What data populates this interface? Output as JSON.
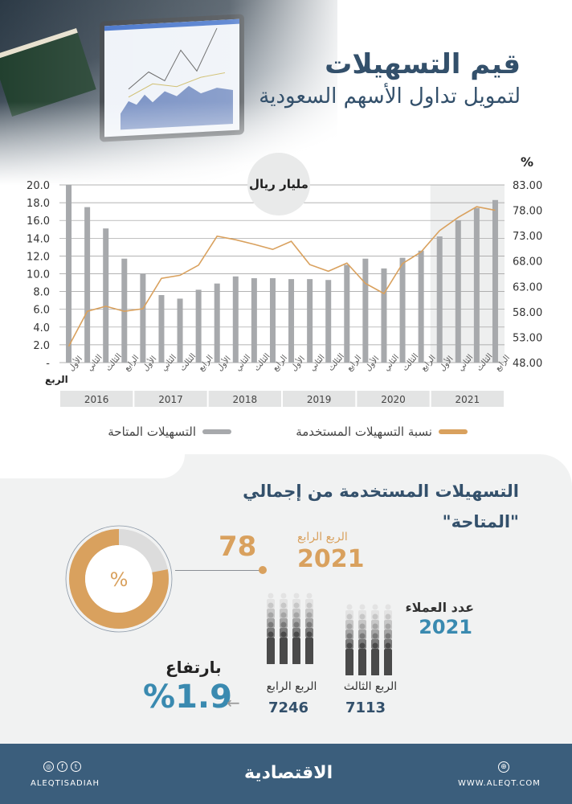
{
  "header": {
    "title_line1": "قيم التسهيلات",
    "title_line2": "لتمويل تداول الأسهم السعودية"
  },
  "chart": {
    "unit_label": "مليار ريال",
    "right_axis_label": "%",
    "quarter_axis_label": "الربع",
    "legend": [
      {
        "label": "نسبة التسهيلات المستخدمة",
        "color": "#d9a15e"
      },
      {
        "label": "التسهيلات المتاحة",
        "color": "#a7a9ac"
      }
    ],
    "years": [
      "2016",
      "2017",
      "2018",
      "2019",
      "2020",
      "2021"
    ]
  },
  "chart_data": {
    "type": "bar",
    "title": "قيم التسهيلات لتمويل تداول الأسهم السعودية",
    "xlabel": "الربع",
    "ylabel": "مليار ريال",
    "y2label": "%",
    "ylim": [
      0,
      20
    ],
    "y2lim": [
      48,
      83
    ],
    "y_ticks": [
      "-",
      "2.0",
      "4.0",
      "6.0",
      "8.0",
      "10.0",
      "12.0",
      "14.0",
      "16.0",
      "18.0",
      "20.0"
    ],
    "y2_ticks": [
      "48.00",
      "53.00",
      "58.00",
      "63.00",
      "68.00",
      "73.00",
      "78.00",
      "83.00"
    ],
    "grid": true,
    "legend_position": "bottom",
    "highlight_year": "2021",
    "categories": [
      "الأول 2016",
      "الثاني 2016",
      "الثالث 2016",
      "الرابع 2016",
      "الأول 2017",
      "الثاني 2017",
      "الثالث 2017",
      "الرابع 2017",
      "الأول 2018",
      "الثاني 2018",
      "الثالث 2018",
      "الرابع 2018",
      "الأول 2019",
      "الثاني 2019",
      "الثالث 2019",
      "الرابع 2019",
      "الأول 2020",
      "الثاني 2020",
      "الثالث 2020",
      "الرابع 2020",
      "الأول 2021",
      "الثاني 2021",
      "الثالث 2021",
      "الرابع 2021"
    ],
    "quarter_labels": [
      "الأول",
      "الثاني",
      "الثالث",
      "الرابع",
      "الأول",
      "الثاني",
      "الثالث",
      "الرابع",
      "الأول",
      "الثاني",
      "الثالث",
      "الرابع",
      "الأول",
      "الثاني",
      "الثالث",
      "الرابع",
      "الأول",
      "الثاني",
      "الثالث",
      "الرابع",
      "الأول",
      "الثاني",
      "الثالث",
      "الرابع"
    ],
    "series": [
      {
        "name": "التسهيلات المتاحة",
        "type": "bar",
        "axis": "left",
        "color": "#a7a9ac",
        "values": [
          20.0,
          17.5,
          15.1,
          11.7,
          10.0,
          7.6,
          7.2,
          8.2,
          8.9,
          9.7,
          9.5,
          9.5,
          9.4,
          9.4,
          9.3,
          11.0,
          11.7,
          10.6,
          11.8,
          12.6,
          14.2,
          16.0,
          17.4,
          18.3
        ]
      },
      {
        "name": "نسبة التسهيلات المستخدمة",
        "type": "line",
        "axis": "right",
        "color": "#d9a15e",
        "values": [
          51.2,
          58.1,
          59.1,
          58.1,
          58.6,
          64.6,
          65.2,
          67.2,
          72.9,
          72.2,
          71.3,
          70.3,
          71.9,
          67.3,
          66.0,
          67.6,
          63.6,
          61.6,
          67.5,
          69.8,
          74.0,
          76.6,
          78.7,
          78.0
        ]
      }
    ]
  },
  "summary": {
    "title_line1": "التسهيلات المستخدمة من إجمالي",
    "title_line2": "\"المتاحة\"",
    "donut_symbol": "%",
    "donut_value": 78,
    "value_text": "78",
    "period_label": "الربع الرابع",
    "period_year": "2021",
    "colors": {
      "accent": "#d9a15e",
      "remainder": "#dcdcdc"
    }
  },
  "clients": {
    "label": "عدد العملاء",
    "year": "2021",
    "groups": [
      {
        "label": "الربع الثالث",
        "value": "7113"
      },
      {
        "label": "الربع الرابع",
        "value": "7246"
      }
    ],
    "rise_label": "بارتفاع",
    "rise_value": "%1.9",
    "arrow": "←"
  },
  "footer": {
    "social_handle": "ALEQTISADIAH",
    "logo": "الاقتصادية",
    "url": "WWW.ALEQT.COM",
    "social_icons": [
      "instagram-icon",
      "facebook-icon",
      "twitter-icon"
    ],
    "bg_color": "#3b5e7c"
  }
}
